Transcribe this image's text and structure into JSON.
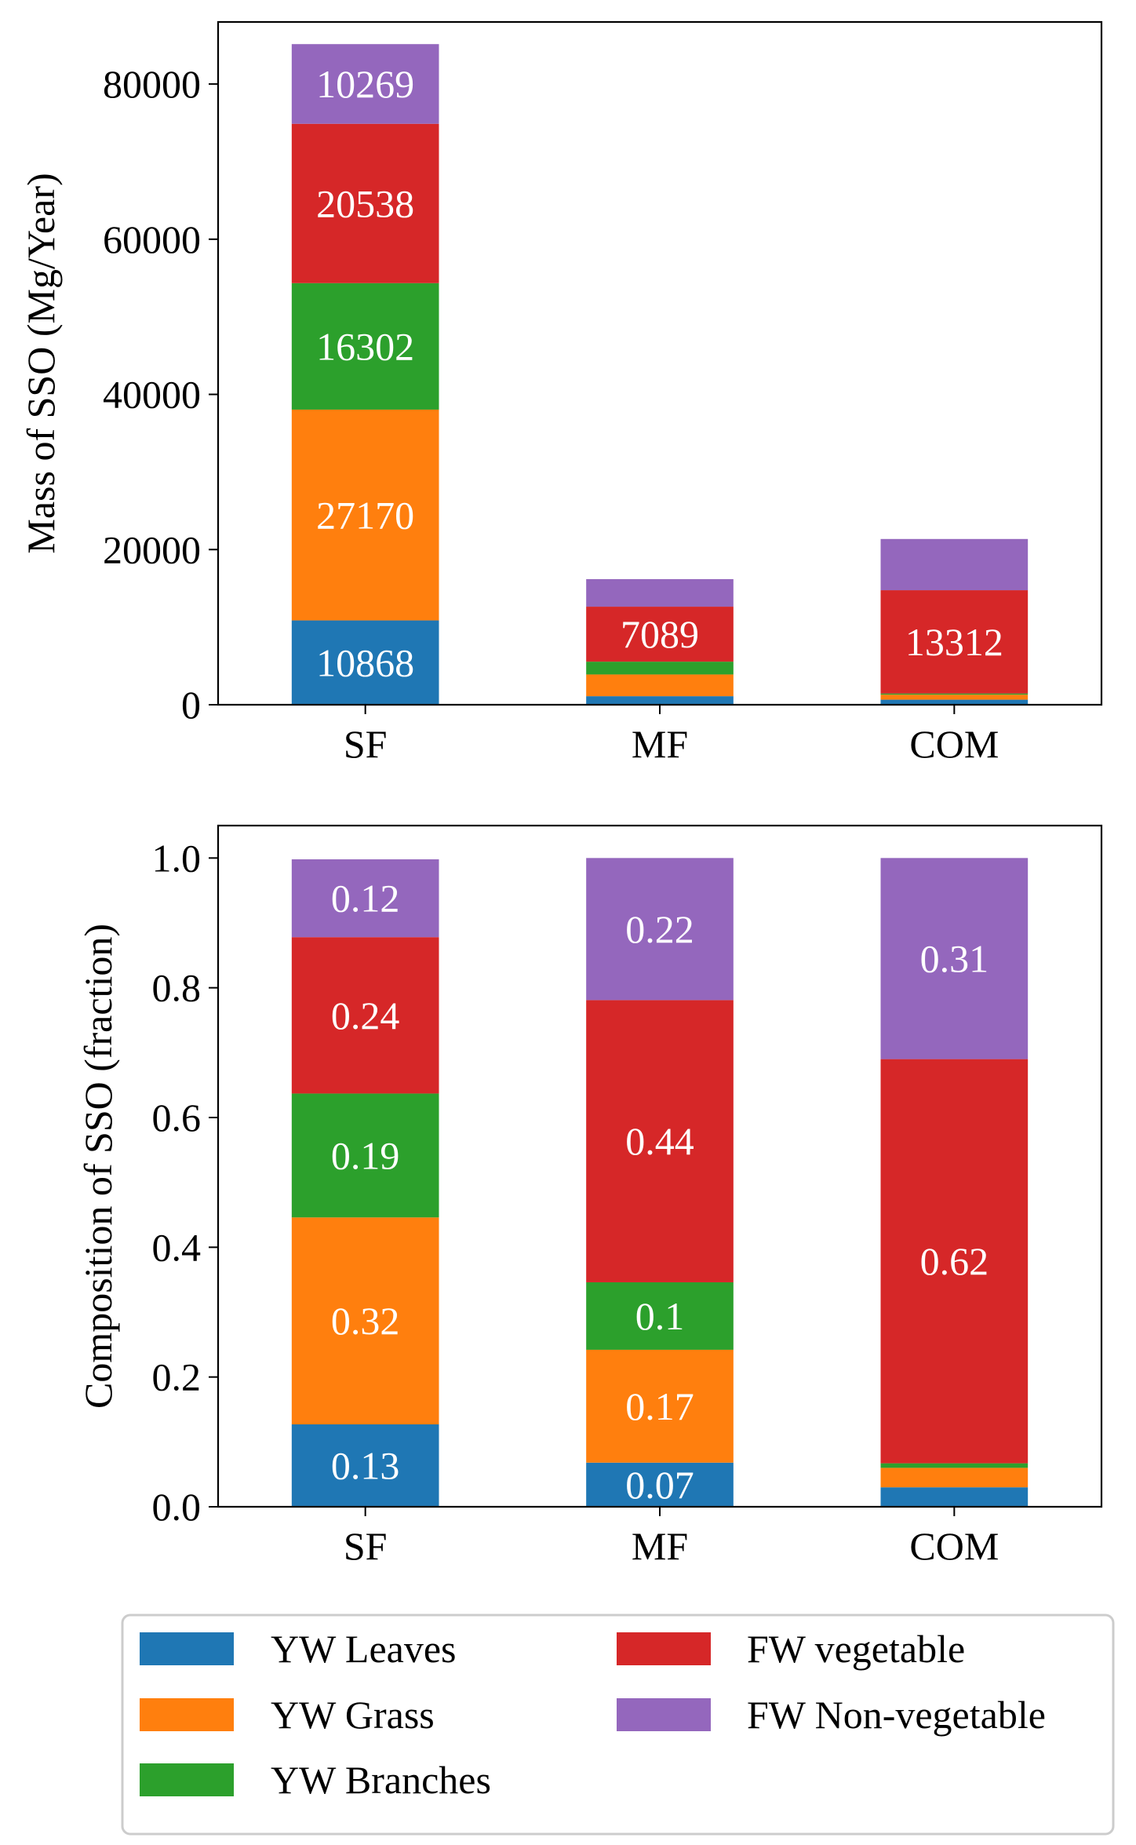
{
  "colors": {
    "yw_leaves": "#1f77b4",
    "yw_grass": "#ff7f0e",
    "yw_branches": "#2ca02c",
    "fw_vegetable": "#d62728",
    "fw_nonvegetable": "#9467bd"
  },
  "legend": {
    "placement": "bottom",
    "entries": [
      "YW Leaves",
      "YW Grass",
      "YW Branches",
      "FW vegetable",
      "FW Non-vegetable"
    ]
  },
  "chart_data": [
    {
      "type": "bar",
      "stacked": true,
      "categories": [
        "SF",
        "MF",
        "COM"
      ],
      "ylabel": "Mass of SSO (Mg/Year)",
      "ylim": [
        0,
        88000
      ],
      "yticks": [
        0,
        20000,
        40000,
        60000,
        80000
      ],
      "ytick_labels": [
        "0",
        "20000",
        "40000",
        "60000",
        "80000"
      ],
      "series": [
        {
          "name": "YW Leaves",
          "values": [
            10868,
            1100,
            650
          ],
          "labels": [
            "10868",
            "",
            ""
          ]
        },
        {
          "name": "YW Grass",
          "values": [
            27170,
            2800,
            650
          ],
          "labels": [
            "27170",
            "",
            ""
          ]
        },
        {
          "name": "YW Branches",
          "values": [
            16302,
            1650,
            150
          ],
          "labels": [
            "16302",
            "",
            ""
          ]
        },
        {
          "name": "FW vegetable",
          "values": [
            20538,
            7089,
            13312
          ],
          "labels": [
            "20538",
            "7089",
            "13312"
          ]
        },
        {
          "name": "FW Non-vegetable",
          "values": [
            10269,
            3550,
            6600
          ],
          "labels": [
            "10269",
            "",
            ""
          ]
        }
      ]
    },
    {
      "type": "bar",
      "stacked": true,
      "categories": [
        "SF",
        "MF",
        "COM"
      ],
      "ylabel": "Composition of SSO (fraction)",
      "ylim": [
        0,
        1.05
      ],
      "yticks": [
        0,
        0.2,
        0.4,
        0.6,
        0.8,
        1.0
      ],
      "ytick_labels": [
        "0.0",
        "0.2",
        "0.4",
        "0.6",
        "0.8",
        "1.0"
      ],
      "series": [
        {
          "name": "YW Leaves",
          "values": [
            0.127,
            0.068,
            0.03
          ],
          "labels": [
            "0.13",
            "0.07",
            ""
          ]
        },
        {
          "name": "YW Grass",
          "values": [
            0.319,
            0.174,
            0.03
          ],
          "labels": [
            "0.32",
            "0.17",
            ""
          ]
        },
        {
          "name": "YW Branches",
          "values": [
            0.191,
            0.104,
            0.007
          ],
          "labels": [
            "0.19",
            "0.1",
            ""
          ]
        },
        {
          "name": "FW vegetable",
          "values": [
            0.241,
            0.435,
            0.623
          ],
          "labels": [
            "0.24",
            "0.44",
            "0.62"
          ]
        },
        {
          "name": "FW Non-vegetable",
          "values": [
            0.12,
            0.219,
            0.31
          ],
          "labels": [
            "0.12",
            "0.22",
            "0.31"
          ]
        }
      ]
    }
  ]
}
